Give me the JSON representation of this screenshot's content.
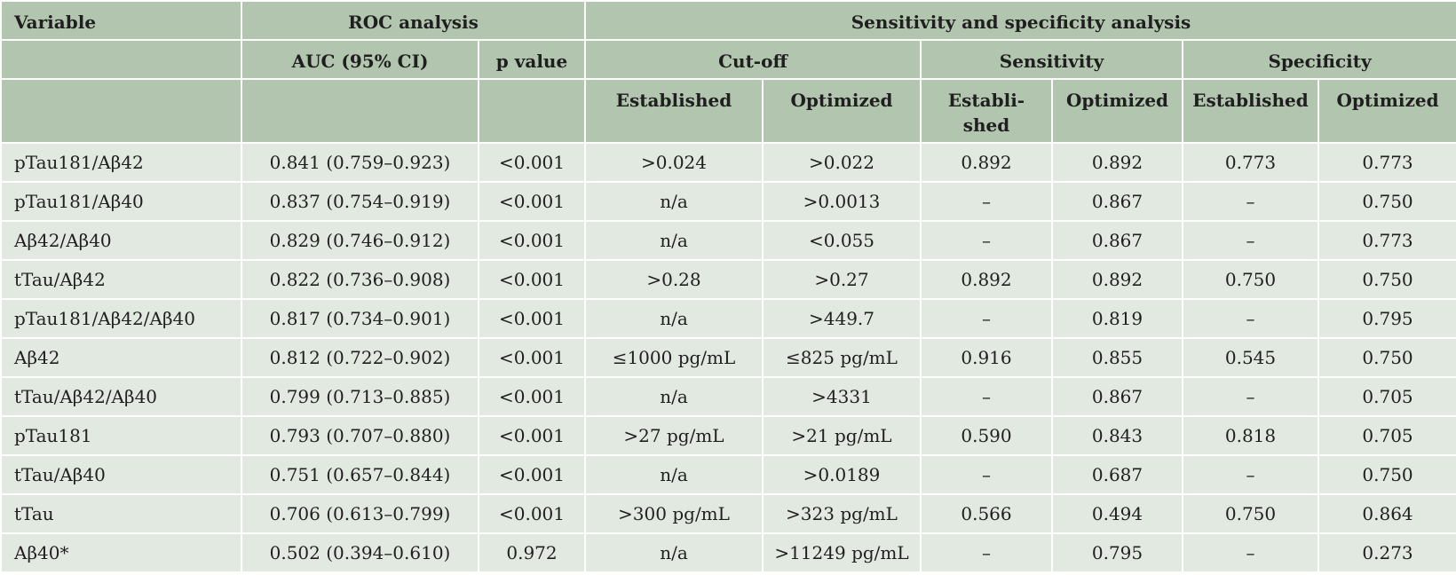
{
  "headers": {
    "variable": "Variable",
    "roc_analysis": "ROC analysis",
    "sens_spec_analysis": "Sensitivity and specificity analysis",
    "auc": "AUC (95% CI)",
    "p_value": "p value",
    "cutoff": "Cut-off",
    "sensitivity": "Sensitivity",
    "specificity": "Specificity",
    "cutoff_established": "Established",
    "cutoff_optimized": "Optimized",
    "sens_established": "Establi-shed",
    "sens_optimized": "Optimized",
    "spec_established": "Established",
    "spec_optimized": "Optimized"
  },
  "rows": [
    {
      "variable": "pTau181/Aβ42",
      "auc": "0.841 (0.759–0.923)",
      "p": "<0.001",
      "cut_est": ">0.024",
      "cut_opt": ">0.022",
      "sens_est": "0.892",
      "sens_opt": "0.892",
      "spec_est": "0.773",
      "spec_opt": "0.773"
    },
    {
      "variable": "pTau181/Aβ40",
      "auc": "0.837 (0.754–0.919)",
      "p": "<0.001",
      "cut_est": "n/a",
      "cut_opt": ">0.0013",
      "sens_est": "–",
      "sens_opt": "0.867",
      "spec_est": "–",
      "spec_opt": "0.750"
    },
    {
      "variable": "Aβ42/Aβ40",
      "auc": "0.829 (0.746–0.912)",
      "p": "<0.001",
      "cut_est": "n/a",
      "cut_opt": "<0.055",
      "sens_est": "–",
      "sens_opt": "0.867",
      "spec_est": "–",
      "spec_opt": "0.773"
    },
    {
      "variable": "tTau/Aβ42",
      "auc": "0.822 (0.736–0.908)",
      "p": "<0.001",
      "cut_est": ">0.28",
      "cut_opt": ">0.27",
      "sens_est": "0.892",
      "sens_opt": "0.892",
      "spec_est": "0.750",
      "spec_opt": "0.750"
    },
    {
      "variable": "pTau181/Aβ42/Aβ40",
      "auc": "0.817 (0.734–0.901)",
      "p": "<0.001",
      "cut_est": "n/a",
      "cut_opt": ">449.7",
      "sens_est": "–",
      "sens_opt": "0.819",
      "spec_est": "–",
      "spec_opt": "0.795"
    },
    {
      "variable": "Aβ42",
      "auc": "0.812 (0.722–0.902)",
      "p": "<0.001",
      "cut_est": "≤1000 pg/mL",
      "cut_opt": "≤825 pg/mL",
      "sens_est": "0.916",
      "sens_opt": "0.855",
      "spec_est": "0.545",
      "spec_opt": "0.750"
    },
    {
      "variable": "tTau/Aβ42/Aβ40",
      "auc": "0.799 (0.713–0.885)",
      "p": "<0.001",
      "cut_est": "n/a",
      "cut_opt": ">4331",
      "sens_est": "–",
      "sens_opt": "0.867",
      "spec_est": "–",
      "spec_opt": "0.705"
    },
    {
      "variable": "pTau181",
      "auc": "0.793 (0.707–0.880)",
      "p": "<0.001",
      "cut_est": ">27 pg/mL",
      "cut_opt": ">21 pg/mL",
      "sens_est": "0.590",
      "sens_opt": "0.843",
      "spec_est": "0.818",
      "spec_opt": "0.705"
    },
    {
      "variable": "tTau/Aβ40",
      "auc": "0.751 (0.657–0.844)",
      "p": "<0.001",
      "cut_est": "n/a",
      "cut_opt": ">0.0189",
      "sens_est": "–",
      "sens_opt": "0.687",
      "spec_est": "–",
      "spec_opt": "0.750"
    },
    {
      "variable": "tTau",
      "auc": "0.706 (0.613–0.799)",
      "p": "<0.001",
      "cut_est": ">300 pg/mL",
      "cut_opt": ">323 pg/mL",
      "sens_est": "0.566",
      "sens_opt": "0.494",
      "spec_est": "0.750",
      "spec_opt": "0.864"
    },
    {
      "variable": "Aβ40*",
      "auc": "0.502 (0.394–0.610)",
      "p": "0.972",
      "cut_est": "n/a",
      "cut_opt": ">11249 pg/mL",
      "sens_est": "–",
      "sens_opt": "0.795",
      "spec_est": "–",
      "spec_opt": "0.273"
    }
  ],
  "colors": {
    "header_bg": "#b2c5ae",
    "row_bg": "#e2e9e0",
    "border": "#ffffff"
  }
}
